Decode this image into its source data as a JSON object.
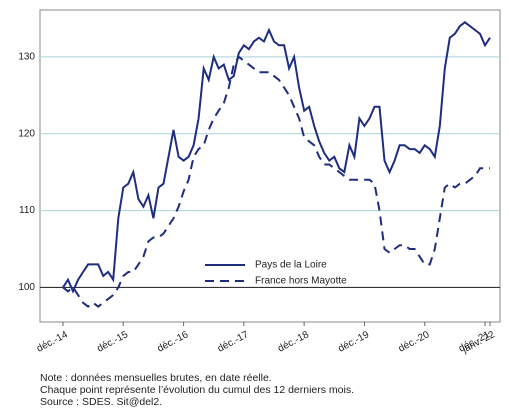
{
  "chart_data": {
    "type": "line",
    "categories": [
      "déc.-14",
      null,
      null,
      null,
      null,
      null,
      null,
      null,
      null,
      null,
      null,
      null,
      "déc.-15",
      null,
      null,
      null,
      null,
      null,
      null,
      null,
      null,
      null,
      null,
      null,
      "déc.-16",
      null,
      null,
      null,
      null,
      null,
      null,
      null,
      null,
      null,
      null,
      null,
      "déc.-17",
      null,
      null,
      null,
      null,
      null,
      null,
      null,
      null,
      null,
      null,
      null,
      "déc.-18",
      null,
      null,
      null,
      null,
      null,
      null,
      null,
      null,
      null,
      null,
      null,
      "déc.-19",
      null,
      null,
      null,
      null,
      null,
      null,
      null,
      null,
      null,
      null,
      null,
      "déc.-20",
      null,
      null,
      null,
      null,
      null,
      null,
      null,
      null,
      null,
      null,
      null,
      "déc.-21",
      "janv.-22"
    ],
    "series": [
      {
        "name": "Pays de la Loire",
        "color": "#1f2d80",
        "dash": false,
        "values": [
          100,
          101,
          99.5,
          101,
          102,
          103,
          103,
          103,
          101.5,
          102,
          101,
          109,
          113,
          113.5,
          115,
          111.5,
          110.5,
          112,
          109,
          113,
          113.5,
          117,
          120.5,
          117,
          116.5,
          117,
          118.5,
          122,
          128.5,
          127,
          130,
          128.5,
          129,
          127,
          127.5,
          130.5,
          131.5,
          131,
          132,
          132.5,
          132,
          133.5,
          132,
          131.5,
          131.5,
          128.5,
          130,
          126,
          123,
          123.5,
          121,
          119,
          117.5,
          116.5,
          117,
          115.5,
          115,
          118.5,
          117,
          122,
          121,
          122,
          123.5,
          123.5,
          116.5,
          115,
          116.5,
          118.5,
          118.5,
          118,
          118,
          117.5,
          118.5,
          118,
          117,
          121,
          128.5,
          132.5,
          133,
          134,
          134.5,
          134,
          133.5,
          133,
          131.5,
          132.5
        ]
      },
      {
        "name": "France hors Mayotte",
        "color": "#1f2d80",
        "dash": true,
        "values": [
          100,
          99.5,
          100,
          99,
          98,
          97.5,
          98,
          97.5,
          98,
          98.5,
          99,
          100,
          101.5,
          102,
          102,
          103,
          104,
          106,
          106.5,
          106.5,
          107,
          108,
          109,
          110.5,
          112.5,
          114,
          117,
          118,
          118.5,
          120.5,
          122,
          123,
          124,
          126,
          129,
          130,
          129.5,
          129,
          128.5,
          128,
          128,
          128,
          127.5,
          127,
          126,
          125,
          123.5,
          122,
          119.5,
          119,
          118.5,
          117,
          116,
          116,
          115.5,
          115,
          114.5,
          114,
          114,
          114,
          114,
          114,
          113.5,
          110,
          105,
          104.5,
          105,
          105.5,
          105.5,
          105,
          105,
          104,
          103,
          103,
          105,
          109,
          113,
          113.5,
          113,
          113.5,
          113.5,
          114,
          114.5,
          115.5,
          115.5,
          115.5
        ]
      }
    ],
    "ylim": [
      95.5,
      136.1
    ],
    "yticks": [
      100,
      110,
      120,
      130
    ],
    "grid": true,
    "baseline": 100,
    "notes": [
      "Note : données mensuelles brutes, en date réelle.",
      "Chaque point représente l’évolution du cumul des 12 derniers mois.",
      "Source : SDES. Sit@del2."
    ]
  }
}
